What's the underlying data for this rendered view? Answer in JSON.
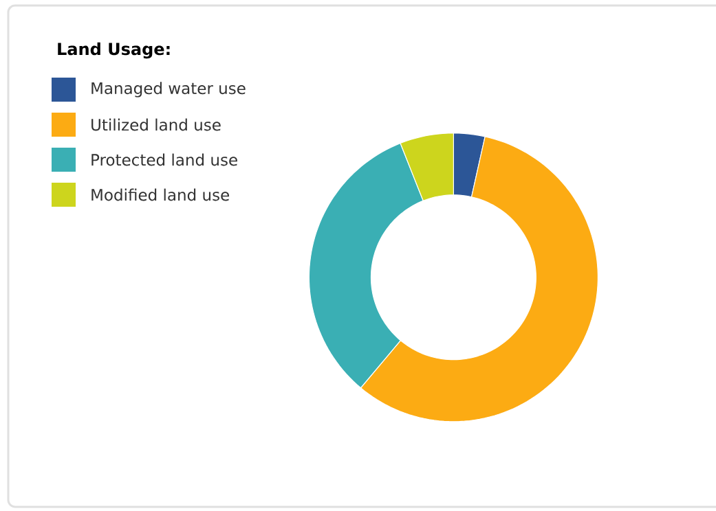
{
  "chart_data": {
    "type": "donut",
    "title": "Land Usage:",
    "categories": [
      "Managed water use",
      "Utilized land use",
      "Protected land use",
      "Modified land use"
    ],
    "values": [
      3.5,
      57.6,
      32.9,
      6.0
    ],
    "colors": [
      "#2c5697",
      "#fcab13",
      "#3aafb4",
      "#cdd51d"
    ],
    "legend": "top left"
  }
}
